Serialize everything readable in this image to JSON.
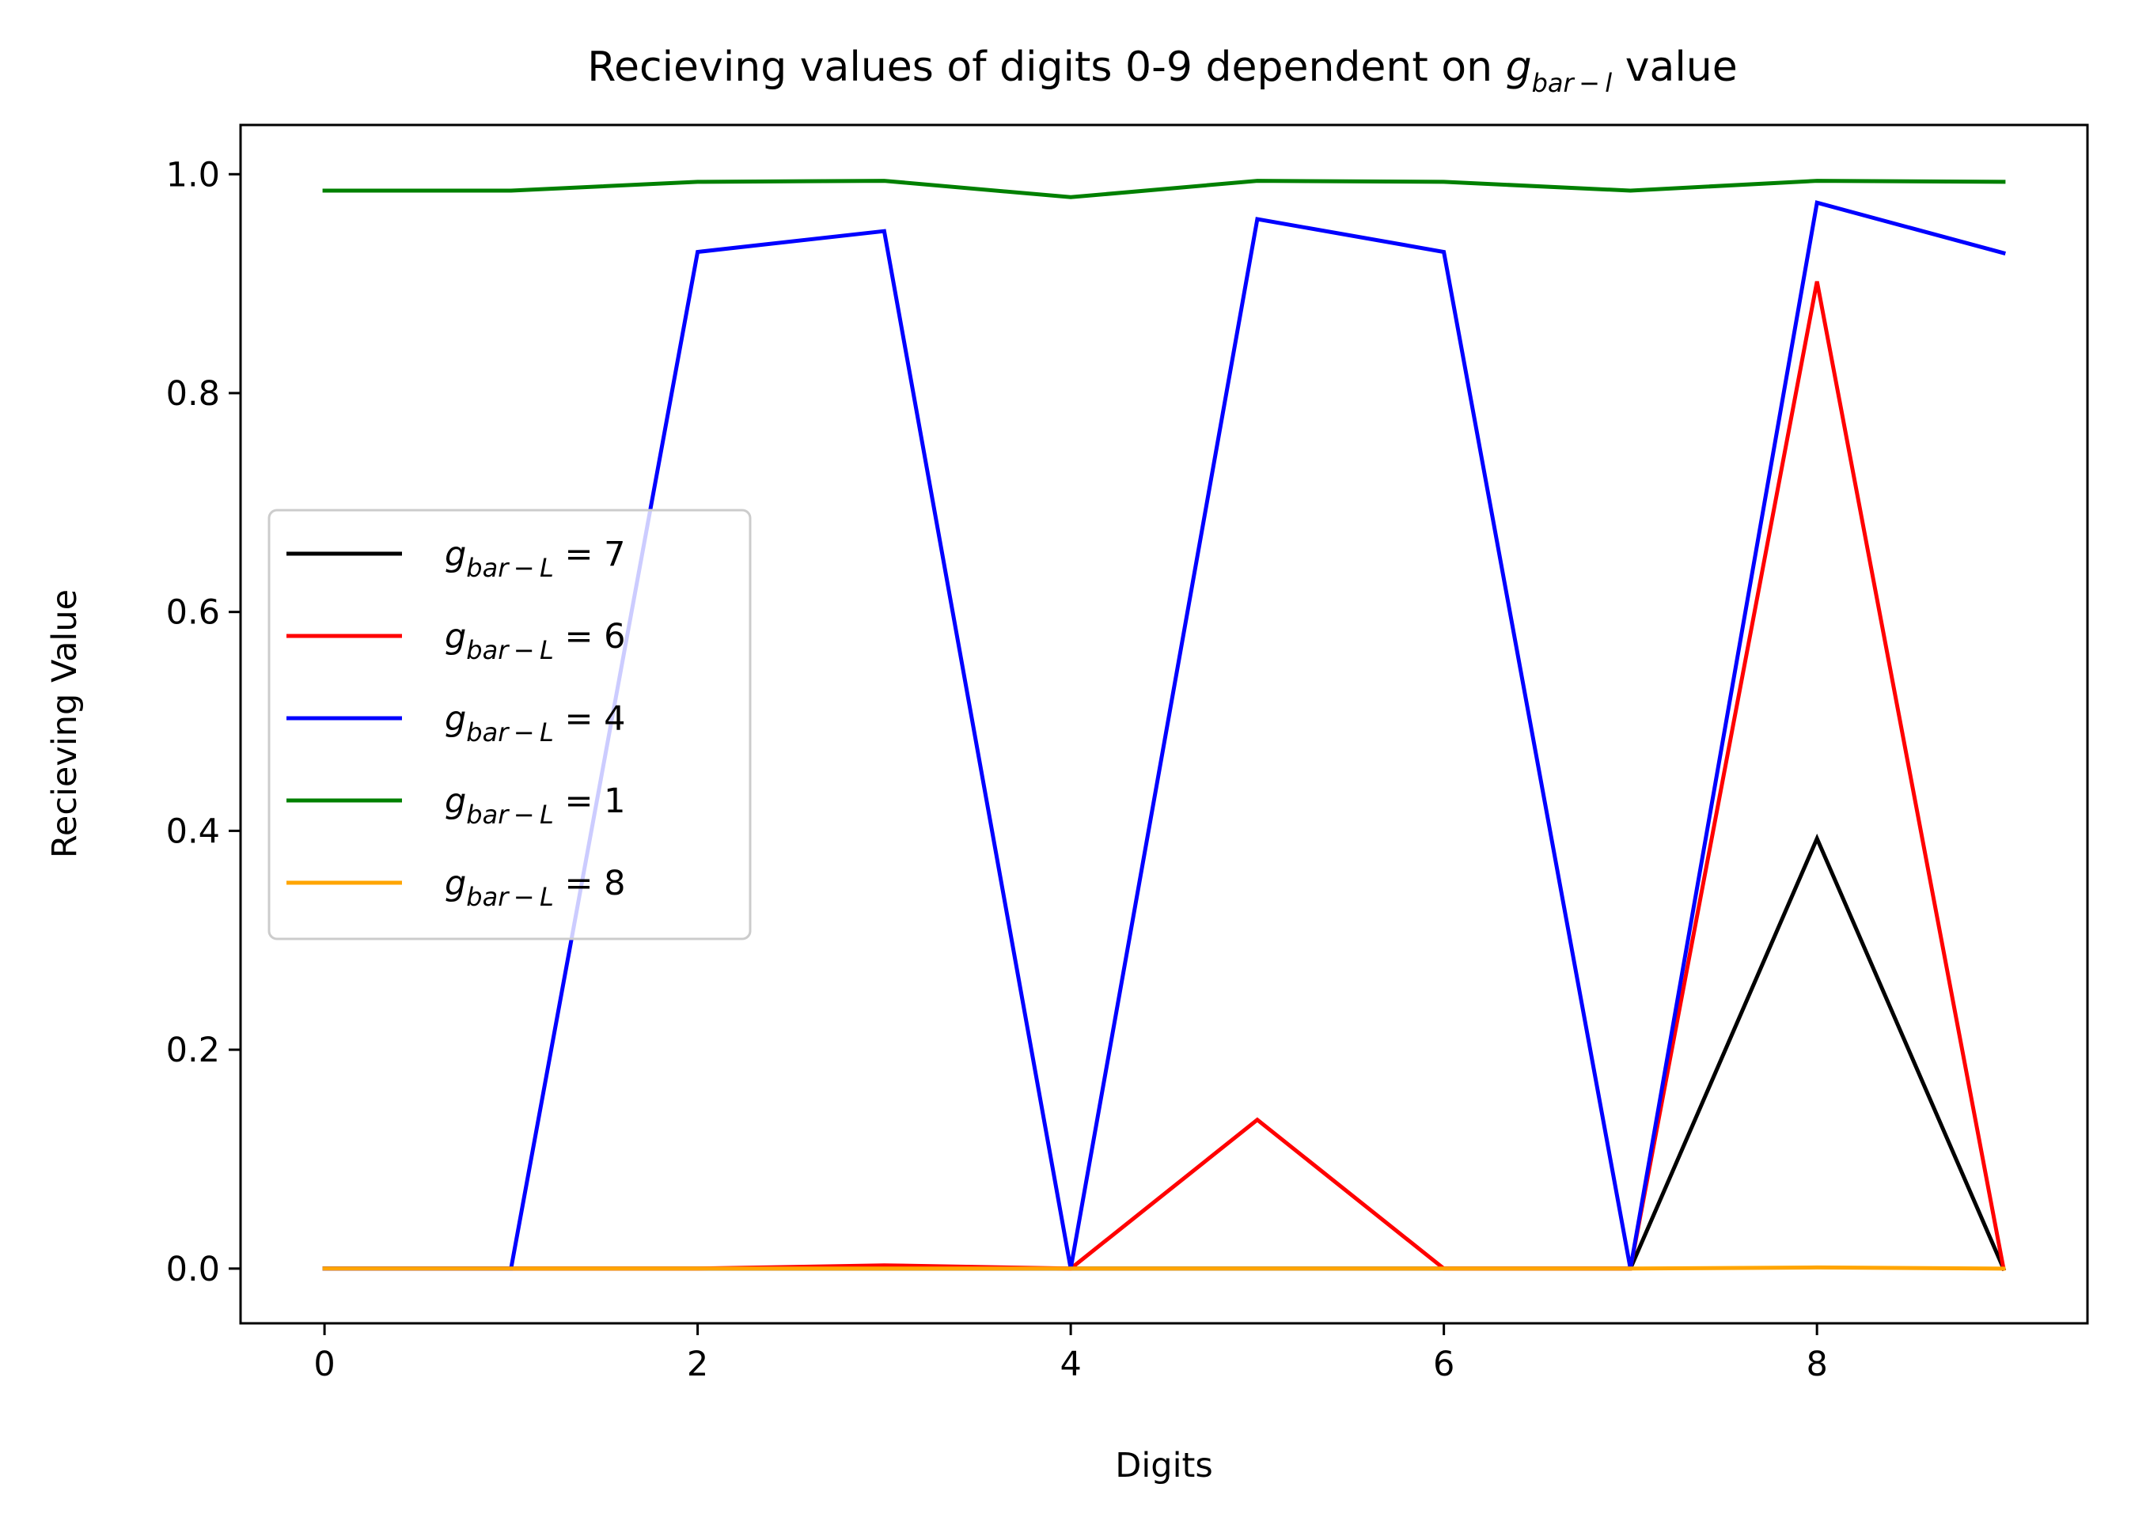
{
  "chart_data": {
    "type": "line",
    "title": {
      "prefix": "Recieving values of digits 0-9 dependent on ",
      "sym": "g",
      "sub": "bar − l",
      "suffix": " value"
    },
    "xlabel": "Digits",
    "ylabel": "Recieving Value",
    "x": [
      0,
      1,
      2,
      3,
      4,
      5,
      6,
      7,
      8,
      9
    ],
    "xlim": [
      -0.45,
      9.45
    ],
    "ylim": [
      -0.05,
      1.045
    ],
    "xticks": [
      0,
      2,
      4,
      6,
      8
    ],
    "xtick_labels": [
      "0",
      "2",
      "4",
      "6",
      "8"
    ],
    "yticks": [
      0.0,
      0.2,
      0.4,
      0.6,
      0.8,
      1.0
    ],
    "ytick_labels": [
      "0.0",
      "0.2",
      "0.4",
      "0.6",
      "0.8",
      "1.0"
    ],
    "grid": false,
    "legend_position": "center-left",
    "legend_sym": "g",
    "legend_sub": "bar − L",
    "series": [
      {
        "name": "= 7",
        "color": "#000000",
        "values": [
          0,
          0,
          0,
          0,
          0,
          0,
          0,
          0,
          0.393,
          0
        ]
      },
      {
        "name": "= 6",
        "color": "#ff0000",
        "values": [
          0,
          0,
          0,
          0.003,
          0,
          0.136,
          0,
          0,
          0.902,
          0
        ]
      },
      {
        "name": "= 4",
        "color": "#0000ff",
        "values": [
          0,
          0,
          0.929,
          0.948,
          0,
          0.959,
          0.929,
          0,
          0.974,
          0.928
        ]
      },
      {
        "name": "= 1",
        "color": "#008000",
        "values": [
          0.985,
          0.985,
          0.993,
          0.994,
          0.979,
          0.994,
          0.993,
          0.985,
          0.994,
          0.993
        ]
      },
      {
        "name": "= 8",
        "color": "#ffa500",
        "values": [
          0,
          0,
          0,
          0,
          0,
          0,
          0,
          0,
          0.001,
          0
        ]
      }
    ]
  }
}
